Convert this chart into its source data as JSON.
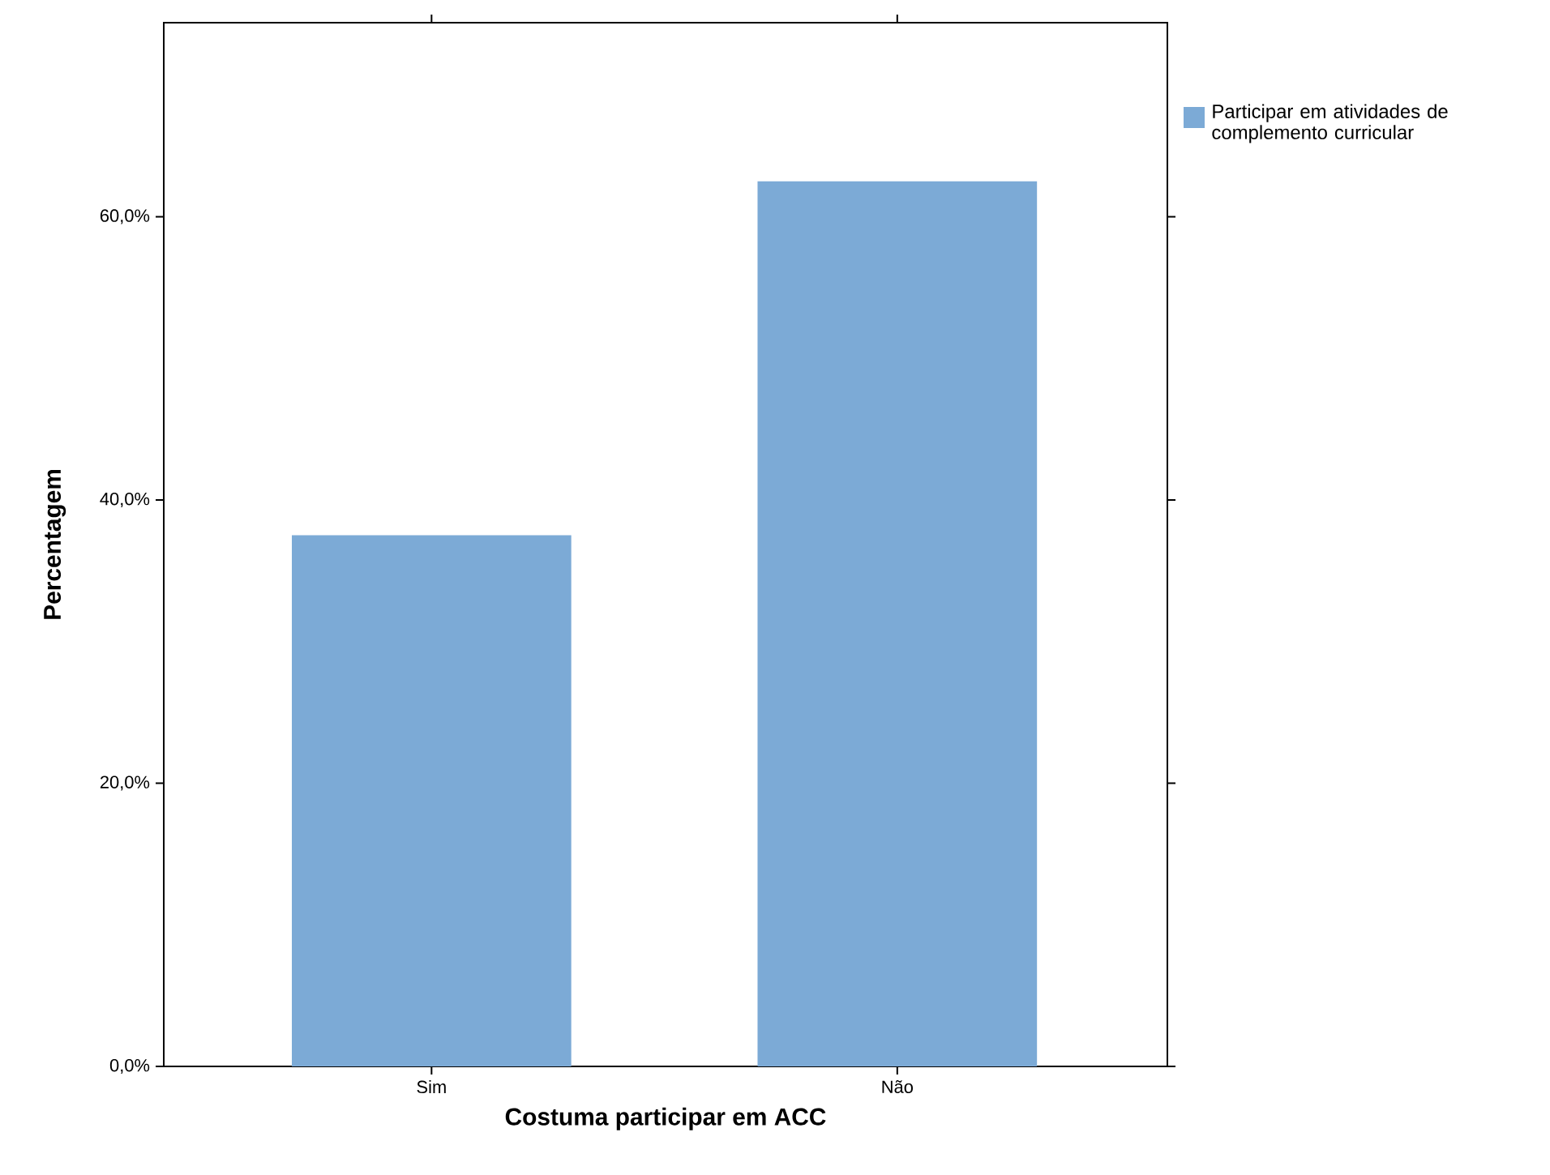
{
  "chart_data": {
    "type": "bar",
    "xlabel": "Costuma participar em ACC",
    "ylabel": "Percentagem",
    "categories": [
      "Sim",
      "Não"
    ],
    "series": [
      {
        "name": "Participar em atividades de complemento curricular",
        "color": "#7caad6",
        "values": [
          37.5,
          62.5
        ]
      }
    ],
    "ylim": [
      0,
      73.7
    ],
    "yticks": [
      {
        "value": 0,
        "label": "0,0%"
      },
      {
        "value": 20,
        "label": "20,0%"
      },
      {
        "value": 40,
        "label": "40,0%"
      },
      {
        "value": 60,
        "label": "60,0%"
      }
    ],
    "legend": "right"
  }
}
